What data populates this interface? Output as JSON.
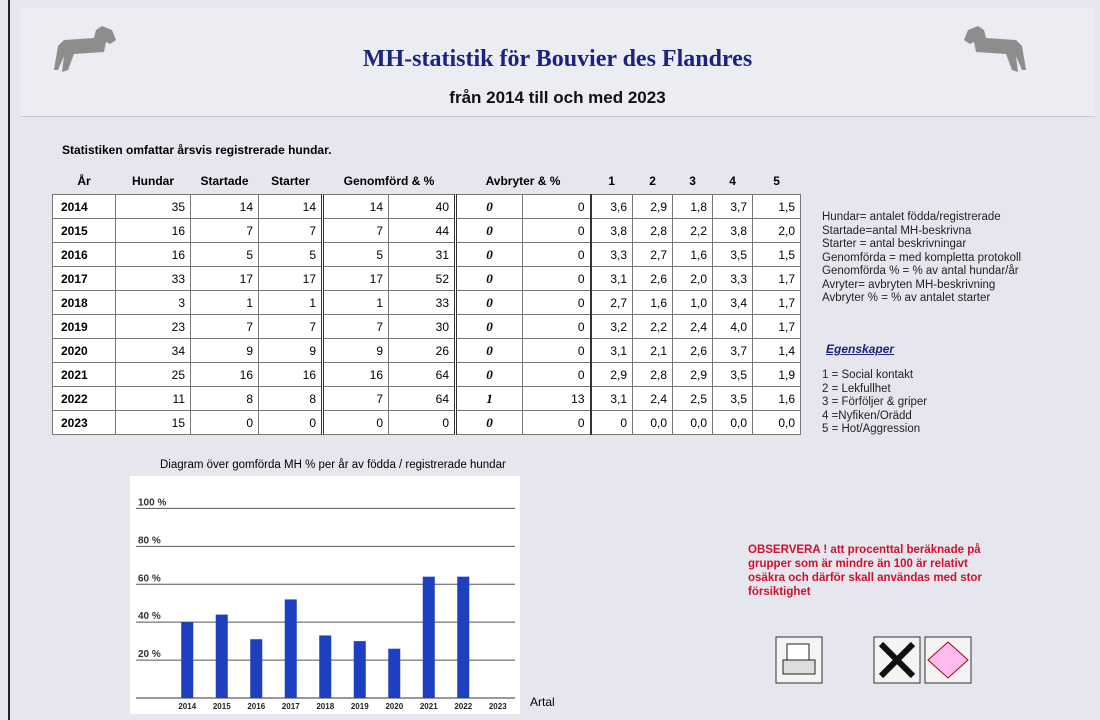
{
  "header": {
    "title": "MH-statistik för Bouvier des Flandres",
    "subtitle": "från 2014 till och med 2023"
  },
  "intro": "Statistiken omfattar årsvis registrerade hundar.",
  "table": {
    "columns": [
      "År",
      "Hundar",
      "Startade",
      "Starter",
      "Genomförd & %",
      "Avbryter & %",
      "1",
      "2",
      "3",
      "4",
      "5"
    ],
    "rows": [
      [
        "2014",
        "35",
        "14",
        "14",
        "14",
        "40",
        "0",
        "0",
        "3,6",
        "2,9",
        "1,8",
        "3,7",
        "1,5"
      ],
      [
        "2015",
        "16",
        "7",
        "7",
        "7",
        "44",
        "0",
        "0",
        "3,8",
        "2,8",
        "2,2",
        "3,8",
        "2,0"
      ],
      [
        "2016",
        "16",
        "5",
        "5",
        "5",
        "31",
        "0",
        "0",
        "3,3",
        "2,7",
        "1,6",
        "3,5",
        "1,5"
      ],
      [
        "2017",
        "33",
        "17",
        "17",
        "17",
        "52",
        "0",
        "0",
        "3,1",
        "2,6",
        "2,0",
        "3,3",
        "1,7"
      ],
      [
        "2018",
        "3",
        "1",
        "1",
        "1",
        "33",
        "0",
        "0",
        "2,7",
        "1,6",
        "1,0",
        "3,4",
        "1,7"
      ],
      [
        "2019",
        "23",
        "7",
        "7",
        "7",
        "30",
        "0",
        "0",
        "3,2",
        "2,2",
        "2,4",
        "4,0",
        "1,7"
      ],
      [
        "2020",
        "34",
        "9",
        "9",
        "9",
        "26",
        "0",
        "0",
        "3,1",
        "2,1",
        "2,6",
        "3,7",
        "1,4"
      ],
      [
        "2021",
        "25",
        "16",
        "16",
        "16",
        "64",
        "0",
        "0",
        "2,9",
        "2,8",
        "2,9",
        "3,5",
        "1,9"
      ],
      [
        "2022",
        "11",
        "8",
        "8",
        "7",
        "64",
        "1",
        "13",
        "3,1",
        "2,4",
        "2,5",
        "3,5",
        "1,6"
      ],
      [
        "2023",
        "15",
        "0",
        "0",
        "0",
        "0",
        "0",
        "0",
        "0",
        "0,0",
        "0,0",
        "0,0",
        "0,0"
      ]
    ]
  },
  "notes": [
    "Hundar= antalet födda/registrerade",
    "Startade=antal MH-beskrivna",
    "Starter = antal beskrivningar",
    "Genomförda = med kompletta protokoll",
    "Genomförda % = % av antal hundar/år",
    "Avryter= avbryten MH-beskrivning",
    "Avbryter % = % av antalet starter"
  ],
  "properties_title": "Egenskaper",
  "properties": [
    "1 = Social kontakt",
    "2 = Lekfullhet",
    "3 = Förföljer & griper",
    "4 =Nyfiken/Orädd",
    "5  = Hot/Aggression"
  ],
  "warning": [
    "OBSERVERA ! att procenttal beräknade på",
    "grupper som är mindre än 100 är relativt",
    "osäkra och därför skall användas med stor",
    "försiktighet"
  ],
  "chart_data": {
    "type": "bar",
    "title": "Diagram över gomförda MH %  per år av födda / registrerade hundar",
    "x_label": "Artal",
    "categories": [
      "2014",
      "2015",
      "2016",
      "2017",
      "2018",
      "2019",
      "2020",
      "2021",
      "2022",
      "2023"
    ],
    "values": [
      40,
      44,
      31,
      52,
      33,
      30,
      26,
      64,
      64,
      0
    ],
    "color": "#1e3fbf",
    "ylim": [
      0,
      115
    ],
    "yticks": [
      {
        "value": 20,
        "label": "20 %"
      },
      {
        "value": 40,
        "label": "40 %"
      },
      {
        "value": 60,
        "label": "60 %"
      },
      {
        "value": 80,
        "label": "80 %"
      },
      {
        "value": 100,
        "label": "100 %"
      }
    ],
    "grid": true
  }
}
